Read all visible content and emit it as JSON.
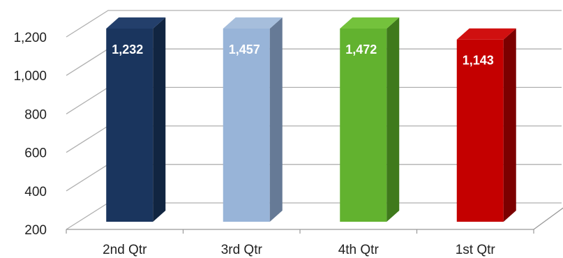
{
  "chart_data": {
    "type": "bar",
    "style": "3d-column",
    "categories": [
      "2nd Qtr",
      "3rd Qtr",
      "4th Qtr",
      "1st Qtr"
    ],
    "values": [
      1232,
      1457,
      1472,
      1143
    ],
    "data_labels": [
      "1,232",
      "1,457",
      "1,472",
      "1,143"
    ],
    "ylim": [
      200,
      1200
    ],
    "y_ticks": [
      200,
      400,
      600,
      800,
      1000,
      1200
    ],
    "y_tick_labels": [
      "200",
      "400",
      "600",
      "800",
      "1,000",
      "1,200"
    ],
    "grid": true,
    "legend": "none",
    "title": "",
    "xlabel": "",
    "ylabel": "",
    "colors": {
      "front": [
        "#1a355e",
        "#98b4d8",
        "#62b22f",
        "#c40000"
      ],
      "side": [
        "#112541",
        "#667a96",
        "#3f7a1c",
        "#7c0000"
      ],
      "top": [
        "#233f6b",
        "#a6bedc",
        "#74c23c",
        "#d01010"
      ],
      "gridline": "#b0b0b0",
      "axis": "#999999"
    }
  }
}
